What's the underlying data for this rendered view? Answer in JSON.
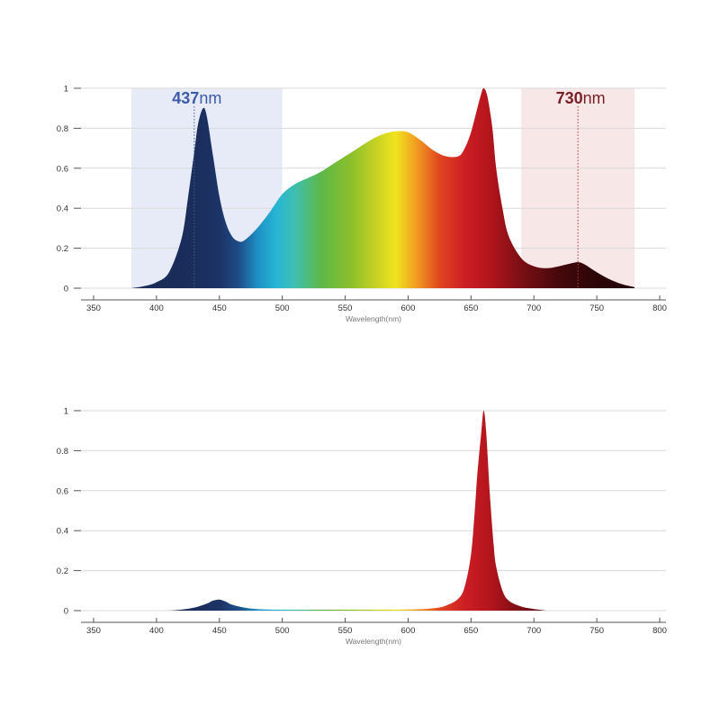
{
  "colors": {
    "grid": "#d9d9d9",
    "axis": "#555555",
    "tick_text": "#333333",
    "blue_band": "#e7ebf7",
    "red_band": "#f7e7e7",
    "blue_label": "#3b5aa8",
    "red_label": "#7a1f28",
    "blue_marker": "#4b5f8f",
    "red_marker": "#b23a3a"
  },
  "chart_data": [
    {
      "type": "area",
      "title": "",
      "xlabel": "Wavelength(nm)",
      "ylabel": "",
      "xlim": [
        340,
        805
      ],
      "ylim": [
        0,
        1
      ],
      "grid": true,
      "xticks": [
        350,
        400,
        450,
        500,
        550,
        600,
        650,
        700,
        750,
        800
      ],
      "yticks": [
        0,
        0.2,
        0.4,
        0.6,
        0.8,
        1
      ],
      "ytick_labels": [
        "0",
        "0.2",
        "0.4",
        "0.6",
        "0.8",
        "1"
      ],
      "fill": "spectrum",
      "bands": [
        {
          "x0": 380,
          "x1": 500,
          "color": "#e7ebf7"
        },
        {
          "x0": 690,
          "x1": 780,
          "color": "#f7e7e7"
        }
      ],
      "annotations": [
        {
          "x": 430,
          "value": "437",
          "unit": "nm",
          "color": "#3b5aa8",
          "marker_color": "#4b5f8f"
        },
        {
          "x": 735,
          "value": "730",
          "unit": "nm",
          "color": "#7a1f28",
          "marker_color": "#b23a3a"
        }
      ],
      "series": [
        {
          "x": [
            380,
            390,
            400,
            410,
            420,
            425,
            430,
            433,
            437,
            440,
            445,
            450,
            455,
            460,
            465,
            470,
            480,
            490,
            500,
            510,
            520,
            530,
            540,
            550,
            560,
            570,
            580,
            590,
            600,
            610,
            620,
            630,
            640,
            645,
            650,
            655,
            658,
            660,
            663,
            667,
            670,
            675,
            680,
            690,
            700,
            710,
            720,
            730,
            735,
            740,
            750,
            760,
            770,
            780
          ],
          "y": [
            0.0,
            0.01,
            0.03,
            0.08,
            0.25,
            0.45,
            0.68,
            0.82,
            0.9,
            0.86,
            0.66,
            0.46,
            0.33,
            0.26,
            0.235,
            0.24,
            0.3,
            0.38,
            0.47,
            0.52,
            0.55,
            0.58,
            0.62,
            0.66,
            0.7,
            0.74,
            0.77,
            0.785,
            0.78,
            0.74,
            0.69,
            0.66,
            0.66,
            0.7,
            0.78,
            0.9,
            0.97,
            1.0,
            0.96,
            0.8,
            0.6,
            0.4,
            0.26,
            0.15,
            0.11,
            0.1,
            0.11,
            0.125,
            0.13,
            0.12,
            0.08,
            0.045,
            0.02,
            0.005
          ]
        }
      ]
    },
    {
      "type": "area",
      "title": "",
      "xlabel": "Wavelength(nm)",
      "ylabel": "",
      "xlim": [
        340,
        805
      ],
      "ylim": [
        0,
        1
      ],
      "grid": true,
      "xticks": [
        350,
        400,
        450,
        500,
        550,
        600,
        650,
        700,
        750,
        800
      ],
      "yticks": [
        0,
        0.2,
        0.4,
        0.6,
        0.8,
        1
      ],
      "ytick_labels": [
        "0",
        "0.2",
        "0.4",
        "0.6",
        "0.8",
        "1"
      ],
      "fill": "spectrum",
      "bands": [],
      "annotations": [],
      "series": [
        {
          "x": [
            410,
            420,
            430,
            440,
            445,
            450,
            455,
            460,
            470,
            480,
            500,
            550,
            600,
            620,
            630,
            640,
            645,
            650,
            653,
            655,
            658,
            660,
            662,
            665,
            668,
            670,
            675,
            680,
            690,
            700,
            710
          ],
          "y": [
            0.0,
            0.005,
            0.015,
            0.035,
            0.05,
            0.055,
            0.045,
            0.03,
            0.015,
            0.008,
            0.005,
            0.005,
            0.006,
            0.012,
            0.025,
            0.06,
            0.12,
            0.28,
            0.5,
            0.68,
            0.88,
            1.0,
            0.9,
            0.58,
            0.33,
            0.22,
            0.1,
            0.05,
            0.02,
            0.008,
            0.0
          ]
        }
      ]
    }
  ]
}
